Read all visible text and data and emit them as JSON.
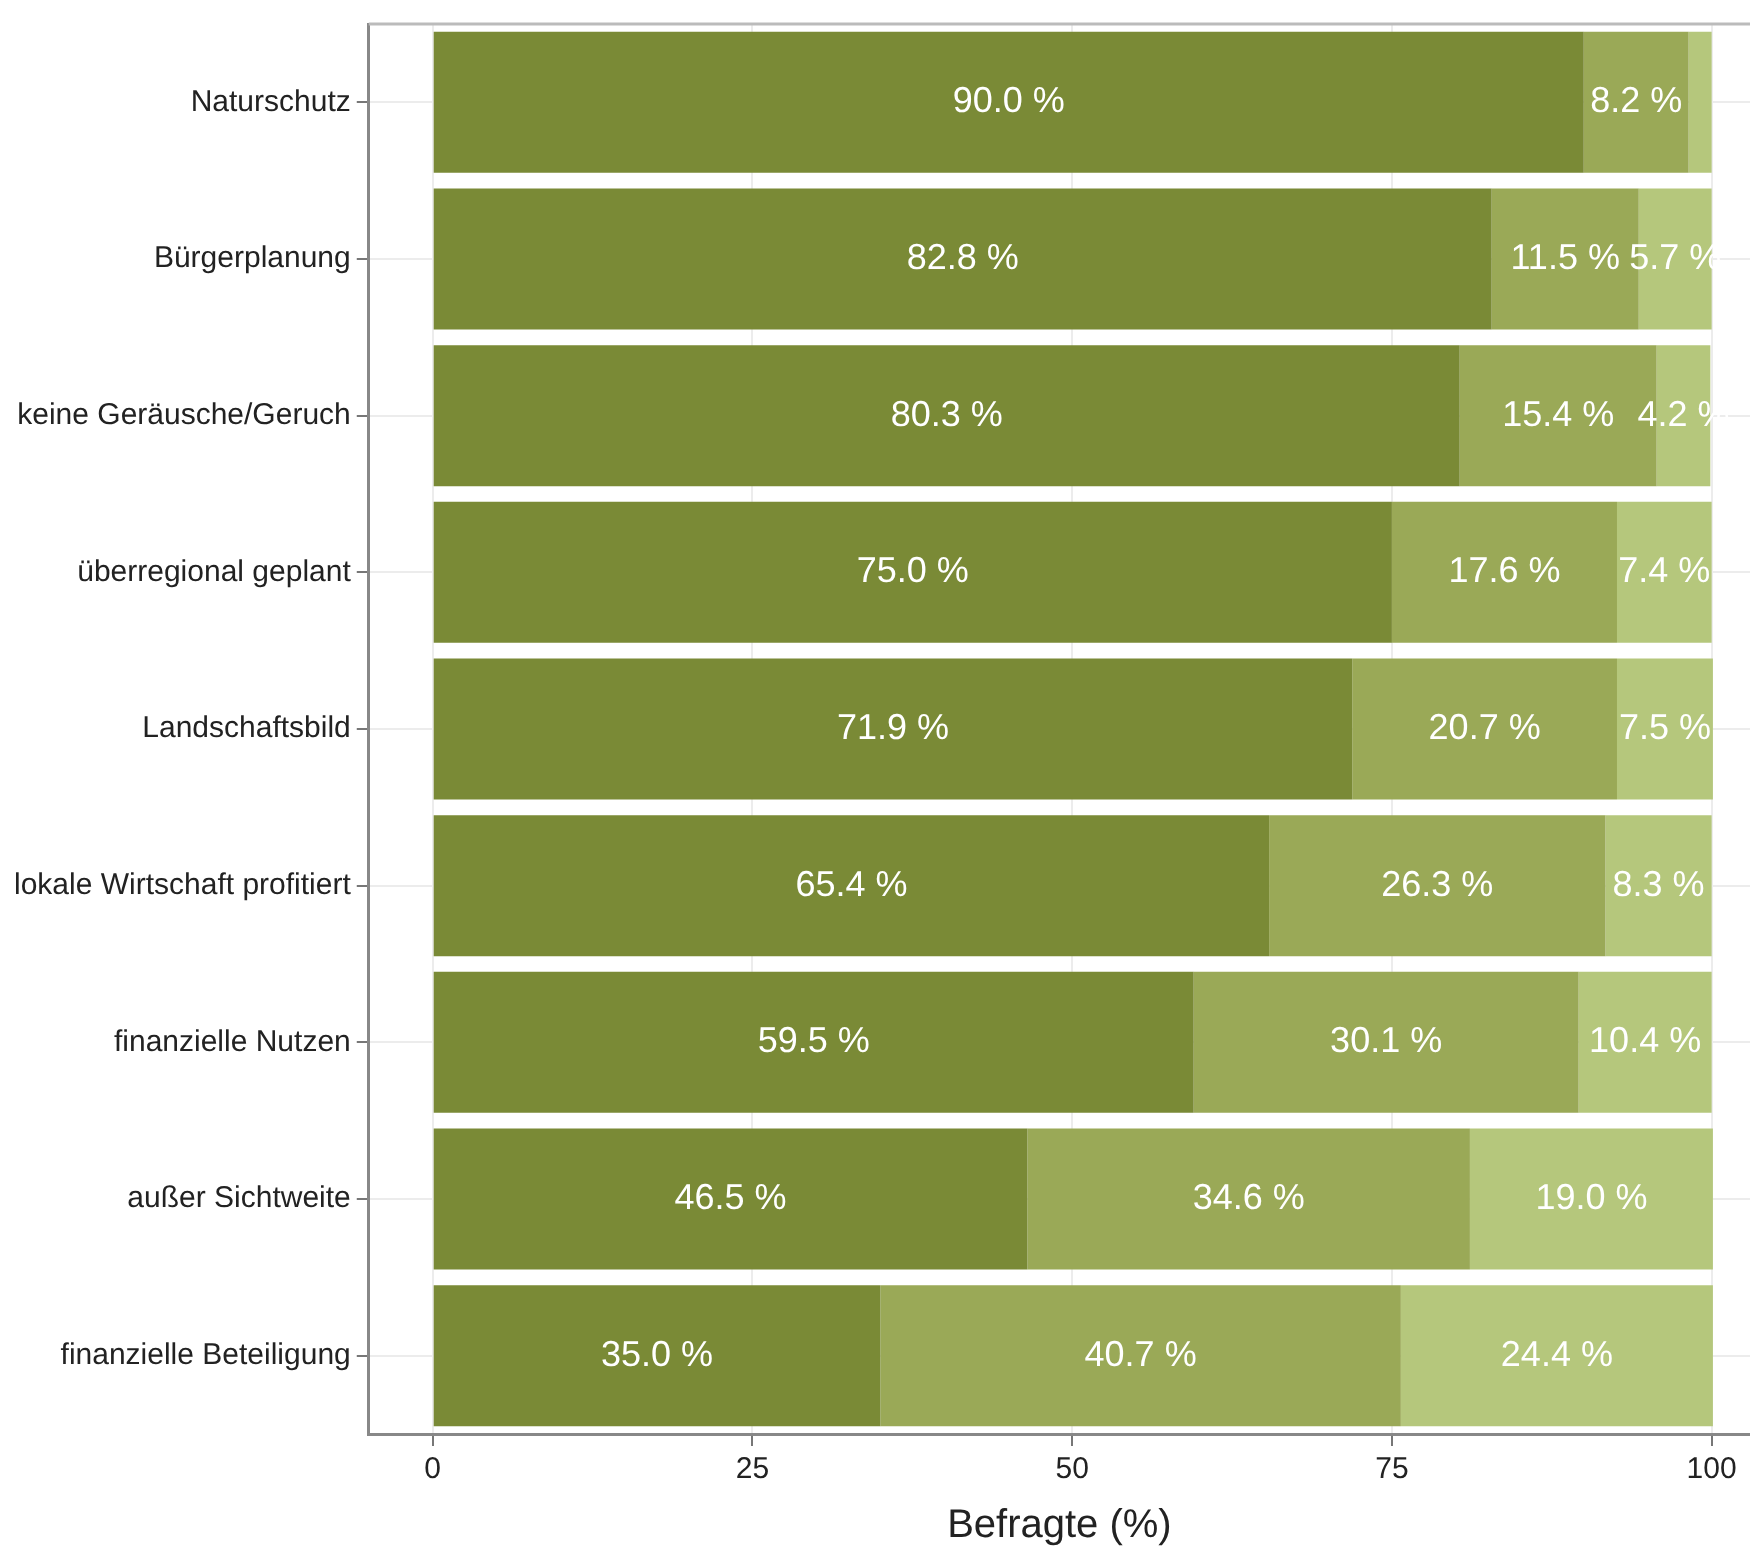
{
  "chart_data": {
    "type": "bar",
    "orientation": "horizontal",
    "stacked": true,
    "xlabel": "Befragte (%)",
    "categories": [
      "Naturschutz",
      "Bürgerplanung",
      "keine Geräusche/Geruch",
      "überregional geplant",
      "Landschaftsbild",
      "lokale Wirtschaft profitiert",
      "finanzielle Nutzen",
      "außer Sichtweite",
      "finanzielle Beteiligung"
    ],
    "series": [
      {
        "color": "#7a8a36",
        "values": [
          90.0,
          82.8,
          80.3,
          75.0,
          71.9,
          65.4,
          59.5,
          46.5,
          35.0
        ],
        "value_labels": [
          "90.0 %",
          "82.8 %",
          "80.3 %",
          "75.0 %",
          "71.9 %",
          "65.4 %",
          "59.5 %",
          "46.5 %",
          "35.0 %"
        ]
      },
      {
        "color": "#9aa957",
        "values": [
          8.2,
          11.5,
          15.4,
          17.6,
          20.7,
          26.3,
          30.1,
          34.6,
          40.7
        ],
        "value_labels": [
          "8.2 %",
          "11.5 %",
          "15.4 %",
          "17.6 %",
          "20.7 %",
          "26.3 %",
          "30.1 %",
          "34.6 %",
          "40.7 %"
        ]
      },
      {
        "color": "#b5c77c",
        "values": [
          1.8,
          5.7,
          4.2,
          7.4,
          7.5,
          8.3,
          10.4,
          19.0,
          24.4
        ],
        "value_labels": [
          null,
          "5.7 %",
          "4.2 %",
          "7.4 %",
          "7.5 %",
          "8.3 %",
          "10.4 %",
          "19.0 %",
          "24.4 %"
        ]
      }
    ],
    "xlim": [
      -5,
      103
    ],
    "xticks": [
      0,
      25,
      50,
      75,
      100
    ],
    "grid": true,
    "legend": false
  }
}
